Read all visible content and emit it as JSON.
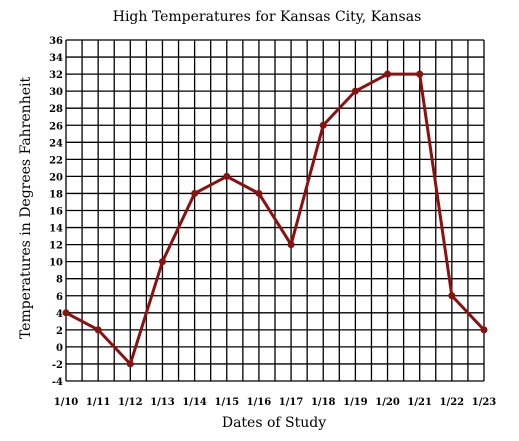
{
  "chart_data": {
    "type": "line",
    "title": "High Temperatures for Kansas City, Kansas",
    "xlabel": "Dates of Study",
    "ylabel": "Temperatures in Degrees Fahrenheit",
    "categories": [
      "1/10",
      "1/11",
      "1/12",
      "1/13",
      "1/14",
      "1/15",
      "1/16",
      "1/17",
      "1/18",
      "1/19",
      "1/20",
      "1/21",
      "1/22",
      "1/23"
    ],
    "series": [
      {
        "values": [
          4,
          2,
          -2,
          10,
          18,
          20,
          18,
          12,
          26,
          30,
          32,
          32,
          6,
          2
        ]
      }
    ],
    "ylim": [
      -4,
      36
    ],
    "yticks": [
      -4,
      -2,
      0,
      2,
      4,
      6,
      8,
      10,
      12,
      14,
      16,
      18,
      20,
      22,
      24,
      26,
      28,
      30,
      32,
      34,
      36
    ],
    "grid": true,
    "line_color": "#8b1010",
    "grid_color": "#000000"
  }
}
